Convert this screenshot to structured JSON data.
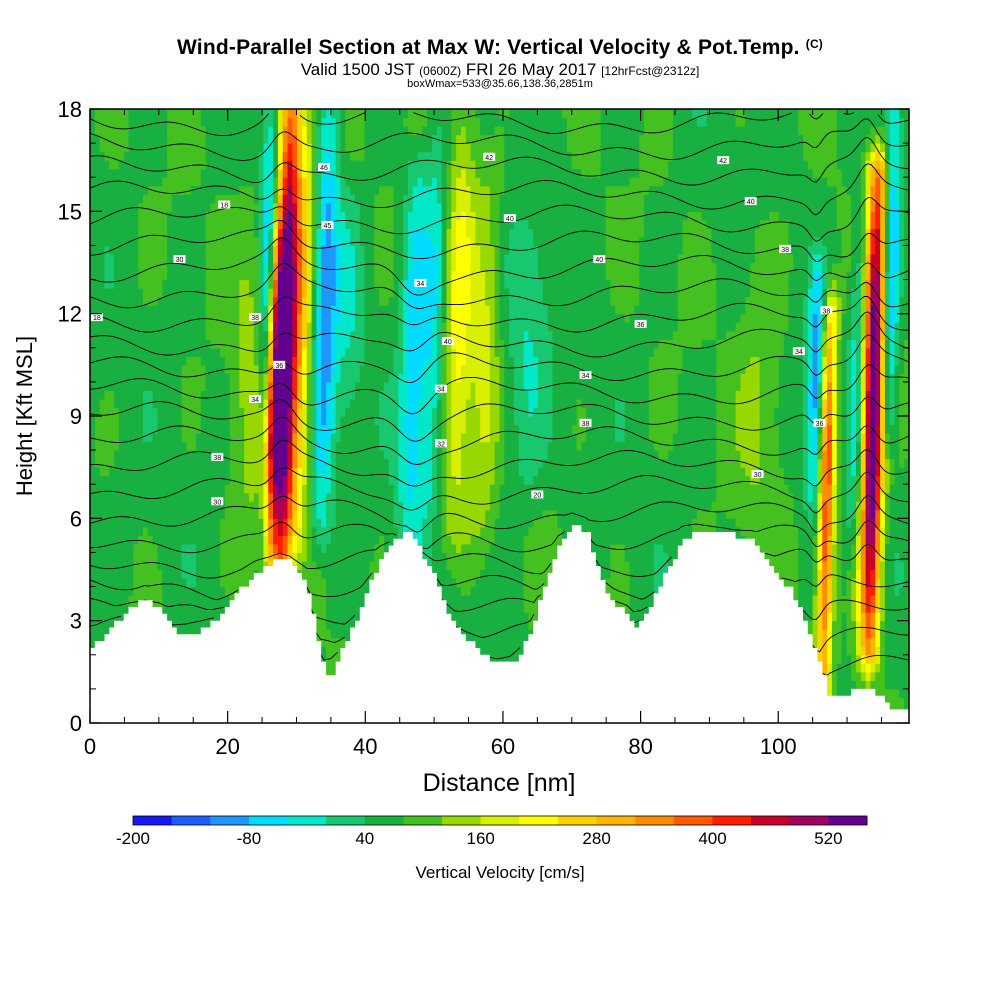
{
  "header": {
    "title": "Wind-Parallel Section at Max W: Vertical Velocity & Pot.Temp.",
    "copyright": "(C)",
    "valid_prefix": "Valid 1500 JST",
    "valid_zulu": "(0600Z)",
    "valid_date": "FRI 26 May 2017",
    "forecast": "[12hrFcst@2312z]",
    "boxinfo": "boxWmax=533@35.66,138.36,2851m"
  },
  "chart_data": {
    "type": "heatmap",
    "title": "Wind-Parallel Section at Max W: Vertical Velocity & Pot.Temp.",
    "xlabel": "Distance [nm]",
    "ylabel": "Height [Kft MSL]",
    "xlim": [
      0,
      119
    ],
    "ylim": [
      0,
      18
    ],
    "x_ticks": [
      "0",
      "20",
      "40",
      "60",
      "80",
      "100"
    ],
    "y_ticks": [
      "0",
      "3",
      "6",
      "9",
      "12",
      "15",
      "18"
    ],
    "colorbar": {
      "label": "Vertical Velocity [cm/s]",
      "tick_labels": [
        "-200",
        "-80",
        "40",
        "160",
        "280",
        "400",
        "520"
      ],
      "colors": [
        "#1818f0",
        "#1e5cff",
        "#1e96ff",
        "#00dcff",
        "#00e8c8",
        "#18c870",
        "#18b040",
        "#44c020",
        "#96d800",
        "#d8f000",
        "#ffff00",
        "#ffd000",
        "#ffb400",
        "#ff8c00",
        "#ff5a00",
        "#ff1e00",
        "#c80028",
        "#a00060",
        "#640090"
      ]
    },
    "terrain_kft": [
      [
        0,
        2.2
      ],
      [
        3,
        2.8
      ],
      [
        6,
        3.4
      ],
      [
        8,
        3.6
      ],
      [
        10,
        3.3
      ],
      [
        11,
        3.0
      ],
      [
        12,
        2.7
      ],
      [
        14,
        2.6
      ],
      [
        16,
        2.7
      ],
      [
        18,
        3.0
      ],
      [
        20,
        3.5
      ],
      [
        22,
        4.0
      ],
      [
        24,
        4.4
      ],
      [
        26,
        4.6
      ],
      [
        27.5,
        4.9
      ],
      [
        29,
        4.8
      ],
      [
        31,
        4.2
      ],
      [
        32,
        3.3
      ],
      [
        33,
        2.3
      ],
      [
        34,
        1.4
      ],
      [
        35,
        1.5
      ],
      [
        36,
        2.0
      ],
      [
        38,
        2.8
      ],
      [
        40,
        3.8
      ],
      [
        42,
        4.8
      ],
      [
        44,
        5.4
      ],
      [
        46,
        5.6
      ],
      [
        48,
        5.0
      ],
      [
        50,
        4.3
      ],
      [
        51,
        3.6
      ],
      [
        53,
        2.8
      ],
      [
        55,
        2.4
      ],
      [
        57,
        2.0
      ],
      [
        59,
        1.7
      ],
      [
        61,
        1.7
      ],
      [
        62,
        2.0
      ],
      [
        64,
        2.6
      ],
      [
        65,
        3.5
      ],
      [
        66,
        4.0
      ],
      [
        67,
        4.6
      ],
      [
        68,
        5.3
      ],
      [
        70,
        5.8
      ],
      [
        72,
        5.6
      ],
      [
        74,
        4.2
      ],
      [
        76,
        3.5
      ],
      [
        78,
        3.2
      ],
      [
        79,
        2.8
      ],
      [
        80,
        3.0
      ],
      [
        82,
        3.8
      ],
      [
        84,
        4.6
      ],
      [
        86,
        5.4
      ],
      [
        88,
        5.6
      ],
      [
        92,
        5.6
      ],
      [
        96,
        5.3
      ],
      [
        98,
        4.8
      ],
      [
        100,
        4.3
      ],
      [
        102,
        3.8
      ],
      [
        104,
        2.8
      ],
      [
        106,
        1.6
      ],
      [
        107,
        0.9
      ],
      [
        108,
        0.7
      ],
      [
        110,
        0.9
      ],
      [
        112,
        1.0
      ],
      [
        114,
        0.9
      ],
      [
        116,
        0.5
      ],
      [
        117,
        0.4
      ],
      [
        119,
        0.4
      ]
    ],
    "updrafts": [
      {
        "x": 27.8,
        "y0": 4.5,
        "y1": 17.8,
        "peak": 500,
        "sigma": 1.1
      },
      {
        "x": 30.0,
        "y0": 6.0,
        "y1": 17.8,
        "peak": 200,
        "sigma": 1.3
      },
      {
        "x": 26.3,
        "y0": 5.5,
        "y1": 14.0,
        "peak": 240,
        "sigma": 0.7
      },
      {
        "x": 53.0,
        "y0": 6.0,
        "y1": 17.5,
        "peak": 140,
        "sigma": 1.6
      },
      {
        "x": 57.0,
        "y0": 6.0,
        "y1": 16.0,
        "peak": 90,
        "sigma": 1.4
      },
      {
        "x": 113.5,
        "y0": 2.5,
        "y1": 16.0,
        "peak": 533,
        "sigma": 1.1
      },
      {
        "x": 107.0,
        "y0": 1.0,
        "y1": 12.0,
        "peak": 330,
        "sigma": 0.8
      },
      {
        "x": 23.0,
        "y0": 5.0,
        "y1": 15.0,
        "peak": 60,
        "sigma": 2.0
      },
      {
        "x": 97.0,
        "y0": 6.0,
        "y1": 14.0,
        "peak": 55,
        "sigma": 2.5
      }
    ],
    "downdrafts": [
      {
        "x": 33.5,
        "y0": 6.0,
        "y1": 17.8,
        "peak": -170,
        "sigma": 1.3
      },
      {
        "x": 25.0,
        "y0": 10.0,
        "y1": 17.8,
        "peak": -150,
        "sigma": 0.8
      },
      {
        "x": 46.5,
        "y0": 5.5,
        "y1": 16.0,
        "peak": -140,
        "sigma": 1.4
      },
      {
        "x": 49.5,
        "y0": 7.0,
        "y1": 17.0,
        "peak": -110,
        "sigma": 1.2
      },
      {
        "x": 115.5,
        "y0": 9.0,
        "y1": 17.8,
        "peak": -200,
        "sigma": 0.9
      },
      {
        "x": 105.0,
        "y0": 7.0,
        "y1": 13.0,
        "peak": -180,
        "sigma": 0.8
      },
      {
        "x": 111.0,
        "y0": 6.0,
        "y1": 15.0,
        "peak": -110,
        "sigma": 0.8
      },
      {
        "x": 63.0,
        "y0": 7.0,
        "y1": 14.0,
        "peak": -70,
        "sigma": 2.2
      },
      {
        "x": 37.0,
        "y0": 9.0,
        "y1": 15.0,
        "peak": -60,
        "sigma": 1.5
      }
    ],
    "contour_labels": [
      {
        "x": 1,
        "y": 11.9,
        "text": "18"
      },
      {
        "x": 13,
        "y": 13.6,
        "text": "30"
      },
      {
        "x": 19.5,
        "y": 15.2,
        "text": "18"
      },
      {
        "x": 24,
        "y": 11.9,
        "text": "38"
      },
      {
        "x": 27.5,
        "y": 10.5,
        "text": "36"
      },
      {
        "x": 24,
        "y": 9.5,
        "text": "34"
      },
      {
        "x": 18.5,
        "y": 7.8,
        "text": "38"
      },
      {
        "x": 18.5,
        "y": 6.5,
        "text": "30"
      },
      {
        "x": 34,
        "y": 16.3,
        "text": "46"
      },
      {
        "x": 34.5,
        "y": 14.6,
        "text": "45"
      },
      {
        "x": 48,
        "y": 12.9,
        "text": "34"
      },
      {
        "x": 52,
        "y": 11.2,
        "text": "40"
      },
      {
        "x": 51,
        "y": 9.8,
        "text": "34"
      },
      {
        "x": 51,
        "y": 8.2,
        "text": "32"
      },
      {
        "x": 58,
        "y": 16.6,
        "text": "42"
      },
      {
        "x": 61,
        "y": 14.8,
        "text": "40"
      },
      {
        "x": 74,
        "y": 13.6,
        "text": "40"
      },
      {
        "x": 80,
        "y": 11.7,
        "text": "36"
      },
      {
        "x": 72,
        "y": 10.2,
        "text": "34"
      },
      {
        "x": 72,
        "y": 8.8,
        "text": "38"
      },
      {
        "x": 65,
        "y": 6.7,
        "text": "20"
      },
      {
        "x": 92,
        "y": 16.5,
        "text": "42"
      },
      {
        "x": 96,
        "y": 15.3,
        "text": "40"
      },
      {
        "x": 101,
        "y": 13.9,
        "text": "38"
      },
      {
        "x": 103,
        "y": 10.9,
        "text": "34"
      },
      {
        "x": 107,
        "y": 12.1,
        "text": "38"
      },
      {
        "x": 106,
        "y": 8.8,
        "text": "36"
      },
      {
        "x": 97,
        "y": 7.3,
        "text": "30"
      }
    ]
  }
}
